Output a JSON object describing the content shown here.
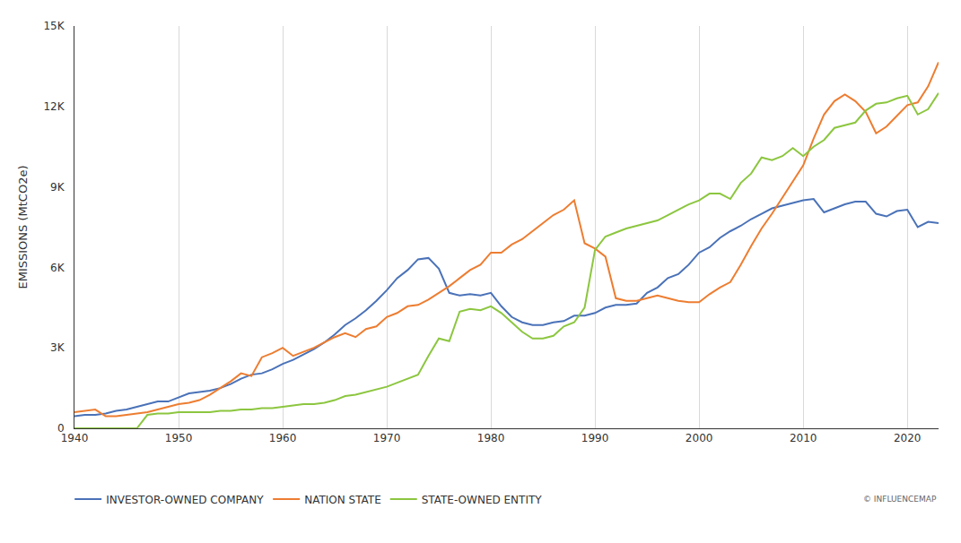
{
  "chart_data": {
    "type": "line",
    "y_label": "EMISSIONS (MtCO2e)",
    "annotation": "© INFLUENCEMAP",
    "x": [
      1940,
      1941,
      1942,
      1943,
      1944,
      1945,
      1946,
      1947,
      1948,
      1949,
      1950,
      1951,
      1952,
      1953,
      1954,
      1955,
      1956,
      1957,
      1958,
      1959,
      1960,
      1961,
      1962,
      1963,
      1964,
      1965,
      1966,
      1967,
      1968,
      1969,
      1970,
      1971,
      1972,
      1973,
      1974,
      1975,
      1976,
      1977,
      1978,
      1979,
      1980,
      1981,
      1982,
      1983,
      1984,
      1985,
      1986,
      1987,
      1988,
      1989,
      1990,
      1991,
      1992,
      1993,
      1994,
      1995,
      1996,
      1997,
      1998,
      1999,
      2000,
      2001,
      2002,
      2003,
      2004,
      2005,
      2006,
      2007,
      2008,
      2009,
      2010,
      2011,
      2012,
      2013,
      2014,
      2015,
      2016,
      2017,
      2018,
      2019,
      2020,
      2021,
      2022,
      2023
    ],
    "series": [
      {
        "name": "INVESTOR-OWNED COMPANY",
        "color": "#4a72b8",
        "values": [
          450,
          500,
          500,
          550,
          650,
          700,
          800,
          900,
          1000,
          1000,
          1150,
          1300,
          1350,
          1400,
          1500,
          1650,
          1850,
          2000,
          2050,
          2200,
          2400,
          2550,
          2750,
          2950,
          3200,
          3500,
          3850,
          4100,
          4400,
          4750,
          5150,
          5600,
          5900,
          6300,
          6350,
          5950,
          5050,
          4950,
          5000,
          4950,
          5050,
          4550,
          4150,
          3950,
          3850,
          3850,
          3950,
          4000,
          4200,
          4200,
          4300,
          4500,
          4600,
          4600,
          4650,
          5050,
          5250,
          5600,
          5750,
          6100,
          6550,
          6750,
          7100,
          7350,
          7550,
          7800,
          8000,
          8200,
          8300,
          8400,
          8500,
          8550,
          8050,
          8200,
          8350,
          8450,
          8450,
          8000,
          7900,
          8100,
          8150,
          7500,
          7700,
          7650
        ]
      },
      {
        "name": "NATION STATE",
        "color": "#ed7d31",
        "values": [
          600,
          650,
          700,
          450,
          450,
          500,
          550,
          600,
          700,
          800,
          900,
          950,
          1050,
          1250,
          1500,
          1750,
          2050,
          1950,
          2650,
          2800,
          3000,
          2700,
          2850,
          3000,
          3200,
          3400,
          3550,
          3400,
          3700,
          3800,
          4150,
          4300,
          4550,
          4600,
          4800,
          5050,
          5300,
          5600,
          5900,
          6100,
          6550,
          6550,
          6850,
          7050,
          7350,
          7650,
          7950,
          8150,
          8500,
          6900,
          6700,
          6400,
          4850,
          4750,
          4750,
          4850,
          4950,
          4850,
          4750,
          4700,
          4700,
          5000,
          5250,
          5450,
          6100,
          6800,
          7450,
          8000,
          8600,
          9200,
          9800,
          10800,
          11700,
          12200,
          12450,
          12200,
          11800,
          11000,
          11250,
          11650,
          12050,
          12150,
          12750,
          13650
        ]
      },
      {
        "name": "STATE-OWNED ENTITY",
        "color": "#8cc63f",
        "values": [
          0,
          0,
          0,
          0,
          0,
          0,
          0,
          500,
          550,
          550,
          600,
          600,
          600,
          600,
          650,
          650,
          700,
          700,
          750,
          750,
          800,
          850,
          900,
          900,
          950,
          1050,
          1200,
          1250,
          1350,
          1450,
          1550,
          1700,
          1850,
          2000,
          2700,
          3350,
          3250,
          4350,
          4450,
          4400,
          4550,
          4300,
          3950,
          3600,
          3350,
          3350,
          3450,
          3800,
          3950,
          4500,
          6650,
          7150,
          7300,
          7450,
          7550,
          7650,
          7750,
          7950,
          8150,
          8350,
          8500,
          8750,
          8750,
          8550,
          9150,
          9500,
          10100,
          10000,
          10150,
          10450,
          10150,
          10500,
          10750,
          11200,
          11300,
          11400,
          11850,
          12100,
          12150,
          12300,
          12400,
          11700,
          11900,
          12500
        ]
      }
    ],
    "xlim": [
      1940,
      2023
    ],
    "xticks": [
      1940,
      1950,
      1960,
      1970,
      1980,
      1990,
      2000,
      2010,
      2020
    ],
    "ylim": [
      0,
      15000
    ],
    "yticks": [
      0,
      {
        "value": 3000,
        "label": "3K"
      },
      {
        "value": 6000,
        "label": "6K"
      },
      {
        "value": 9000,
        "label": "9K"
      },
      {
        "value": 12000,
        "label": "12K"
      },
      {
        "value": 15000,
        "label": "15K"
      }
    ],
    "grid": "x",
    "legend": "bottom left"
  }
}
